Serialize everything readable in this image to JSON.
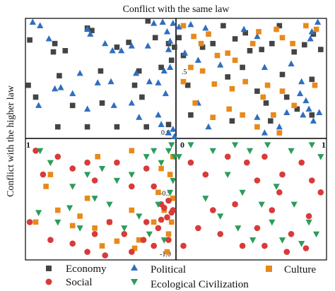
{
  "chart_data": {
    "type": "scatter",
    "title": "Conflict with the same law",
    "ylabel": "Conflict with the higher law",
    "xlim": [
      -1,
      1
    ],
    "ylim": [
      -1,
      1
    ],
    "grid": false,
    "legend_position": "bottom",
    "tick_labels": {
      "x_left": "1",
      "x_zero": "0",
      "x_right": "1",
      "y_half": ".5",
      "y_zero": "0.0",
      "y_neg_half": "-0.5",
      "y_neg_one": "-1.0"
    },
    "series": [
      {
        "name": "Economy",
        "marker": "square",
        "color": "#444444",
        "points": [
          [
            -0.99,
            0.83
          ],
          [
            -0.83,
            0.73
          ],
          [
            -0.82,
            0.8
          ],
          [
            -0.6,
            0.93
          ],
          [
            -0.57,
            0.91
          ],
          [
            -0.75,
            0.74
          ],
          [
            -0.79,
            0.53
          ],
          [
            -0.51,
            0.57
          ],
          [
            -0.32,
            0.81
          ],
          [
            -0.4,
            0.77
          ],
          [
            -0.25,
            0.57
          ],
          [
            -0.14,
            0.85
          ],
          [
            -0.1,
            0.6
          ],
          [
            -0.03,
            0.66
          ],
          [
            -0.05,
            0.8
          ],
          [
            -0.19,
            0.99
          ],
          [
            -0.01,
            0.77
          ],
          [
            -0.28,
            0.45
          ],
          [
            -0.23,
            0.35
          ],
          [
            -0.5,
            0.3
          ],
          [
            -0.7,
            0.28
          ],
          [
            -0.95,
            0.35
          ],
          [
            -0.8,
            0.1
          ],
          [
            -0.6,
            0.1
          ],
          [
            -0.4,
            0.1
          ],
          [
            -0.2,
            0.1
          ],
          [
            -0.05,
            0.12
          ],
          [
            -1.0,
            0.45
          ],
          [
            0.02,
            0.85
          ],
          [
            0.05,
            0.7
          ],
          [
            0.18,
            0.77
          ],
          [
            0.25,
            0.8
          ],
          [
            0.32,
            0.95
          ],
          [
            0.4,
            0.84
          ],
          [
            0.47,
            0.89
          ],
          [
            0.5,
            0.74
          ],
          [
            0.58,
            0.75
          ],
          [
            0.65,
            0.8
          ],
          [
            0.7,
            0.95
          ],
          [
            0.8,
            0.73
          ],
          [
            0.87,
            0.79
          ],
          [
            0.93,
            0.88
          ],
          [
            0.98,
            0.75
          ],
          [
            0.08,
            0.45
          ],
          [
            0.35,
            0.52
          ],
          [
            0.55,
            0.4
          ],
          [
            0.75,
            0.35
          ],
          [
            0.92,
            0.5
          ],
          [
            0.61,
            0.3
          ],
          [
            0.82,
            0.25
          ],
          [
            0.1,
            0.2
          ],
          [
            0.38,
            0.15
          ],
          [
            0.64,
            0.15
          ],
          [
            0.92,
            0.2
          ],
          [
            0.45,
            0.6
          ],
          [
            0.72,
            0.54
          ]
        ]
      },
      {
        "name": "Political",
        "marker": "triangle",
        "color": "#2e6fbf",
        "points": [
          [
            -0.97,
            0.98
          ],
          [
            -0.92,
            0.95
          ],
          [
            -0.86,
            0.84
          ],
          [
            -0.6,
            0.92
          ],
          [
            -0.58,
            0.88
          ],
          [
            -0.48,
            0.8
          ],
          [
            -0.43,
            0.74
          ],
          [
            -0.37,
            0.74
          ],
          [
            -0.3,
            0.78
          ],
          [
            -0.19,
            0.78
          ],
          [
            -0.27,
            0.55
          ],
          [
            -0.18,
            0.48
          ],
          [
            -0.12,
            0.47
          ],
          [
            -0.08,
            0.57
          ],
          [
            -0.05,
            0.75
          ],
          [
            -0.04,
            0.82
          ],
          [
            -0.15,
            0.97
          ],
          [
            -0.09,
            0.98
          ],
          [
            -0.06,
            0.9
          ],
          [
            -0.02,
            0.97
          ],
          [
            -0.93,
            0.28
          ],
          [
            -0.82,
            0.42
          ],
          [
            -0.7,
            0.38
          ],
          [
            -0.6,
            0.25
          ],
          [
            -0.42,
            0.28
          ],
          [
            -0.3,
            0.3
          ],
          [
            -0.25,
            0.18
          ],
          [
            -0.12,
            0.2
          ],
          [
            -0.1,
            0.12
          ],
          [
            -0.05,
            0.05
          ],
          [
            -0.02,
            0.08
          ],
          [
            -0.01,
            0.02
          ],
          [
            -0.07,
            0.38
          ],
          [
            -0.04,
            0.6
          ],
          [
            -0.53,
            0.47
          ],
          [
            -0.44,
            0.48
          ],
          [
            -0.65,
            0.55
          ],
          [
            -0.78,
            0.43
          ],
          [
            0.02,
            0.94
          ],
          [
            0.1,
            0.96
          ],
          [
            0.2,
            0.93
          ],
          [
            0.06,
            0.72
          ],
          [
            0.15,
            0.66
          ],
          [
            0.3,
            0.62
          ],
          [
            0.46,
            0.92
          ],
          [
            0.55,
            0.86
          ],
          [
            0.6,
            0.6
          ],
          [
            0.78,
            0.63
          ],
          [
            0.85,
            0.48
          ],
          [
            0.92,
            0.9
          ],
          [
            0.96,
            0.98
          ],
          [
            0.91,
            0.84
          ],
          [
            0.84,
            0.38
          ],
          [
            0.86,
            0.2
          ],
          [
            0.9,
            0.25
          ],
          [
            0.93,
            0.15
          ],
          [
            0.97,
            0.22
          ],
          [
            0.55,
            0.18
          ],
          [
            0.7,
            0.1
          ],
          [
            0.75,
            0.22
          ],
          [
            0.22,
            0.1
          ],
          [
            0.6,
            0.05
          ],
          [
            0.15,
            0.3
          ],
          [
            0.88,
            0.32
          ]
        ]
      },
      {
        "name": "Culture",
        "marker": "square",
        "color": "#e8891a",
        "points": [
          [
            0.05,
            0.95
          ],
          [
            0.12,
            0.86
          ],
          [
            0.17,
            0.8
          ],
          [
            0.22,
            0.88
          ],
          [
            0.28,
            0.7
          ],
          [
            0.35,
            0.72
          ],
          [
            0.1,
            0.6
          ],
          [
            0.18,
            0.57
          ],
          [
            0.05,
            0.48
          ],
          [
            0.26,
            0.46
          ],
          [
            0.38,
            0.42
          ],
          [
            0.47,
            0.48
          ],
          [
            0.52,
            0.8
          ],
          [
            0.56,
            0.9
          ],
          [
            0.68,
            0.92
          ],
          [
            0.72,
            0.85
          ],
          [
            0.79,
            0.8
          ],
          [
            0.88,
            0.95
          ],
          [
            0.95,
            0.92
          ],
          [
            0.62,
            0.45
          ],
          [
            0.59,
            0.35
          ],
          [
            0.72,
            0.4
          ],
          [
            0.8,
            0.28
          ],
          [
            0.66,
            0.2
          ],
          [
            0.55,
            0.1
          ],
          [
            0.7,
            0.05
          ],
          [
            0.94,
            0.45
          ],
          [
            0.36,
            0.25
          ],
          [
            0.25,
            0.18
          ],
          [
            0.13,
            0.3
          ],
          [
            0.45,
            0.2
          ],
          [
            0.4,
            0.66
          ],
          [
            -0.1,
            -0.25
          ],
          [
            -0.12,
            -0.45
          ],
          [
            -0.08,
            -0.6
          ],
          [
            -0.05,
            -0.8
          ],
          [
            -0.3,
            -0.6
          ],
          [
            -0.45,
            -0.7
          ],
          [
            -0.55,
            -0.75
          ],
          [
            -0.7,
            -0.73
          ],
          [
            -0.8,
            -0.6
          ],
          [
            -0.88,
            -0.4
          ],
          [
            -0.85,
            -0.3
          ],
          [
            -0.65,
            -0.65
          ],
          [
            -0.5,
            -0.9
          ],
          [
            -0.4,
            -0.86
          ],
          [
            -0.25,
            -0.85
          ],
          [
            -0.15,
            -0.7
          ],
          [
            -0.04,
            -0.3
          ],
          [
            -0.02,
            -0.5
          ],
          [
            -0.3,
            -0.1
          ],
          [
            -0.53,
            -0.15
          ],
          [
            -0.95,
            -0.7
          ],
          [
            -0.6,
            -0.5
          ],
          [
            -0.02,
            -0.15
          ],
          [
            -0.03,
            -0.7
          ],
          [
            -0.28,
            -0.92
          ],
          [
            -0.06,
            -0.95
          ]
        ]
      },
      {
        "name": "Social",
        "marker": "circle",
        "color": "#d93a3a",
        "points": [
          [
            -0.95,
            -0.1
          ],
          [
            -0.9,
            -0.3
          ],
          [
            -0.8,
            -0.15
          ],
          [
            -0.7,
            -0.25
          ],
          [
            -0.6,
            -0.2
          ],
          [
            -0.55,
            -0.35
          ],
          [
            -0.4,
            -0.2
          ],
          [
            -0.3,
            -0.4
          ],
          [
            -0.2,
            -0.25
          ],
          [
            -0.15,
            -0.4
          ],
          [
            -0.1,
            -0.55
          ],
          [
            -0.08,
            -0.58
          ],
          [
            -0.05,
            -0.52
          ],
          [
            -0.02,
            -0.6
          ],
          [
            -0.03,
            -0.62
          ],
          [
            -0.06,
            -0.66
          ],
          [
            -0.1,
            -0.68
          ],
          [
            -0.12,
            -0.75
          ],
          [
            -0.2,
            -0.7
          ],
          [
            -0.35,
            -0.8
          ],
          [
            -0.45,
            -0.7
          ],
          [
            -0.55,
            -0.8
          ],
          [
            -0.7,
            -0.88
          ],
          [
            -0.85,
            -0.85
          ],
          [
            -0.99,
            -0.7
          ],
          [
            -0.48,
            -0.98
          ],
          [
            -0.3,
            -0.95
          ],
          [
            -0.15,
            -0.9
          ],
          [
            -0.05,
            -0.85
          ],
          [
            -0.22,
            -0.85
          ],
          [
            -0.6,
            -0.95
          ],
          [
            0.1,
            -0.2
          ],
          [
            0.2,
            -0.3
          ],
          [
            0.35,
            -0.15
          ],
          [
            0.48,
            -0.2
          ],
          [
            0.55,
            -0.35
          ],
          [
            0.6,
            -0.15
          ],
          [
            0.72,
            -0.3
          ],
          [
            0.85,
            -0.2
          ],
          [
            0.92,
            -0.35
          ],
          [
            0.98,
            -0.45
          ],
          [
            0.9,
            -0.65
          ],
          [
            0.78,
            -0.8
          ],
          [
            0.65,
            -0.6
          ],
          [
            0.55,
            -0.75
          ],
          [
            0.45,
            -0.9
          ],
          [
            0.3,
            -0.8
          ],
          [
            0.15,
            -0.75
          ],
          [
            0.05,
            -0.9
          ],
          [
            0.6,
            -0.9
          ],
          [
            0.75,
            -0.95
          ],
          [
            0.88,
            -0.92
          ],
          [
            0.4,
            -0.55
          ],
          [
            0.25,
            -0.6
          ],
          [
            0.7,
            -0.45
          ]
        ]
      },
      {
        "name": "Ecological Civilization",
        "marker": "triangle-down",
        "color": "#2c9c5a",
        "points": [
          [
            -0.92,
            -0.1
          ],
          [
            -0.85,
            -0.2
          ],
          [
            -0.7,
            -0.4
          ],
          [
            -0.6,
            -0.3
          ],
          [
            -0.5,
            -0.25
          ],
          [
            -0.4,
            -0.35
          ],
          [
            -0.3,
            -0.3
          ],
          [
            -0.2,
            -0.15
          ],
          [
            -0.15,
            -0.1
          ],
          [
            -0.1,
            -0.2
          ],
          [
            -0.05,
            -0.1
          ],
          [
            -0.03,
            -0.05
          ],
          [
            -0.01,
            -0.15
          ],
          [
            -0.02,
            -0.35
          ],
          [
            -0.04,
            -0.45
          ],
          [
            -0.12,
            -0.55
          ],
          [
            -0.25,
            -0.65
          ],
          [
            -0.45,
            -0.55
          ],
          [
            -0.65,
            -0.75
          ],
          [
            -0.8,
            -0.7
          ],
          [
            -0.93,
            -0.62
          ],
          [
            -0.35,
            -0.75
          ],
          [
            -0.18,
            -0.8
          ],
          [
            -0.08,
            -0.85
          ],
          [
            -0.55,
            -0.5
          ],
          [
            -0.72,
            -0.58
          ],
          [
            0.02,
            -0.15
          ],
          [
            0.1,
            -0.05
          ],
          [
            0.25,
            -0.1
          ],
          [
            0.4,
            -0.05
          ],
          [
            0.5,
            -0.1
          ],
          [
            0.62,
            -0.05
          ],
          [
            0.78,
            -0.1
          ],
          [
            0.92,
            -0.05
          ],
          [
            0.98,
            -0.15
          ],
          [
            0.35,
            -0.3
          ],
          [
            0.45,
            -0.45
          ],
          [
            0.58,
            -0.55
          ],
          [
            0.68,
            -0.4
          ],
          [
            0.8,
            -0.55
          ],
          [
            0.9,
            -0.7
          ],
          [
            0.95,
            -0.8
          ],
          [
            0.2,
            -0.5
          ],
          [
            0.3,
            -0.65
          ],
          [
            0.42,
            -0.75
          ],
          [
            0.52,
            -0.85
          ],
          [
            0.65,
            -0.7
          ],
          [
            0.72,
            -0.85
          ],
          [
            0.85,
            -0.88
          ]
        ]
      }
    ]
  }
}
